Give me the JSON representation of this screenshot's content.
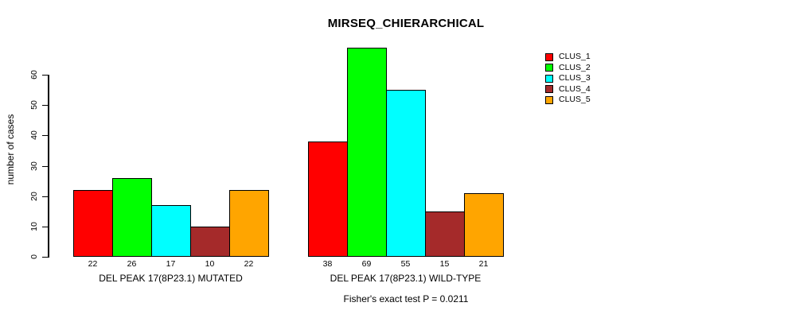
{
  "chart_data": {
    "type": "bar",
    "title": "MIRSEQ_CHIERARCHICAL",
    "ylabel": "number of cases",
    "xlabel": "",
    "categories": [
      "DEL PEAK 17(8P23.1) MUTATED",
      "DEL PEAK 17(8P23.1) WILD-TYPE"
    ],
    "series": [
      {
        "name": "CLUS_1",
        "color": "#ff0000",
        "values": [
          22,
          38
        ]
      },
      {
        "name": "CLUS_2",
        "color": "#00ff00",
        "values": [
          26,
          69
        ]
      },
      {
        "name": "CLUS_3",
        "color": "#00ffff",
        "values": [
          17,
          55
        ]
      },
      {
        "name": "CLUS_4",
        "color": "#a52a2a",
        "values": [
          10,
          15
        ]
      },
      {
        "name": "CLUS_5",
        "color": "#ffa500",
        "values": [
          22,
          21
        ]
      }
    ],
    "yticks": [
      0,
      10,
      20,
      30,
      40,
      50,
      60
    ],
    "ylim": [
      0,
      72
    ],
    "bar_value_labels_shown": true,
    "legend_position": "top-right",
    "grid": false,
    "bar_border_color": "#000000",
    "annotation": "Fisher's exact test P = 0.0211"
  }
}
